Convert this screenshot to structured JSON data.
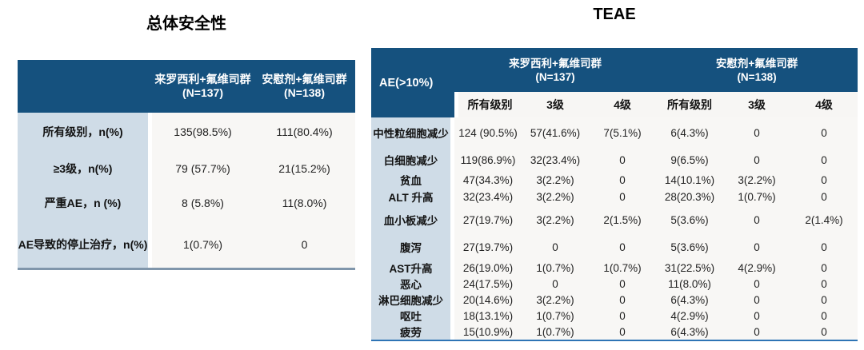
{
  "colors": {
    "header_blue": "#15517E",
    "label_column": "#CFDCE7",
    "body_background": "#F8F7F5",
    "left_table_bottom_border": "#8096AB",
    "right_table_bottom_border": "#2E74B5"
  },
  "overall_safety": {
    "title": "总体安全性",
    "columns": [
      {
        "label": "来罗西利+氟维司群",
        "n": "(N=137)"
      },
      {
        "label": "安慰剂+氟维司群",
        "n": "(N=138)"
      }
    ],
    "rows": [
      {
        "label": "所有级别，n(%)",
        "values": [
          "135(98.5%)",
          "111(80.4%)"
        ]
      },
      {
        "label": "≥3级，n(%)",
        "values": [
          "79 (57.7%)",
          "21(15.2%)"
        ]
      },
      {
        "label": "严重AE，n (%)",
        "values": [
          "8 (5.8%)",
          "11(8.0%)"
        ]
      },
      {
        "label": "AE导致的停止治疗，n(%)",
        "values": [
          "1(0.7%)",
          "0"
        ]
      }
    ]
  },
  "teae": {
    "title": "TEAE",
    "corner_label": "AE(>10%)",
    "groups": [
      {
        "label": "来罗西利+氟维司群",
        "n": "(N=137)"
      },
      {
        "label": "安慰剂+氟维司群",
        "n": "(N=138)"
      }
    ],
    "sub_columns": [
      "所有级别",
      "3级",
      "4级",
      "所有级别",
      "3级",
      "4级"
    ],
    "rows": [
      {
        "label": "中性粒细胞减少",
        "values": [
          "124 (90.5%)",
          "57(41.6%)",
          "7(5.1%)",
          "6(4.3%)",
          "0",
          "0"
        ]
      },
      {
        "label": "白细胞减少",
        "values": [
          "119(86.9%)",
          "32(23.4%)",
          "0",
          "9(6.5%)",
          "0",
          "0"
        ]
      },
      {
        "label": "贫血",
        "values": [
          "47(34.3%)",
          "3(2.2%)",
          "0",
          "14(10.1%)",
          "3(2.2%)",
          "0"
        ]
      },
      {
        "label": "ALT 升高",
        "values": [
          "32(23.4%)",
          "3(2.2%)",
          "0",
          "28(20.3%)",
          "1(0.7%)",
          "0"
        ]
      },
      {
        "label": "血小板减少",
        "values": [
          "27(19.7%)",
          "3(2.2%)",
          "2(1.5%)",
          "5(3.6%)",
          "0",
          "2(1.4%)"
        ]
      },
      {
        "label": "腹泻",
        "values": [
          "27(19.7%)",
          "0",
          "0",
          "5(3.6%)",
          "0",
          "0"
        ]
      },
      {
        "label": "AST升高",
        "values": [
          "26(19.0%)",
          "1(0.7%)",
          "1(0.7%)",
          "31(22.5%)",
          "4(2.9%)",
          "0"
        ]
      },
      {
        "label": "恶心",
        "values": [
          "24(17.5%)",
          "0",
          "0",
          "11(8.0%)",
          "0",
          "0"
        ]
      },
      {
        "label": "淋巴细胞减少",
        "values": [
          "20(14.6%)",
          "3(2.2%)",
          "0",
          "6(4.3%)",
          "0",
          "0"
        ]
      },
      {
        "label": "呕吐",
        "values": [
          "18(13.1%)",
          "1(0.7%)",
          "0",
          "4(2.9%)",
          "0",
          "0"
        ]
      },
      {
        "label": "疲劳",
        "values": [
          "15(10.9%)",
          "1(0.7%)",
          "0",
          "6(4.3%)",
          "0",
          "0"
        ]
      }
    ]
  }
}
